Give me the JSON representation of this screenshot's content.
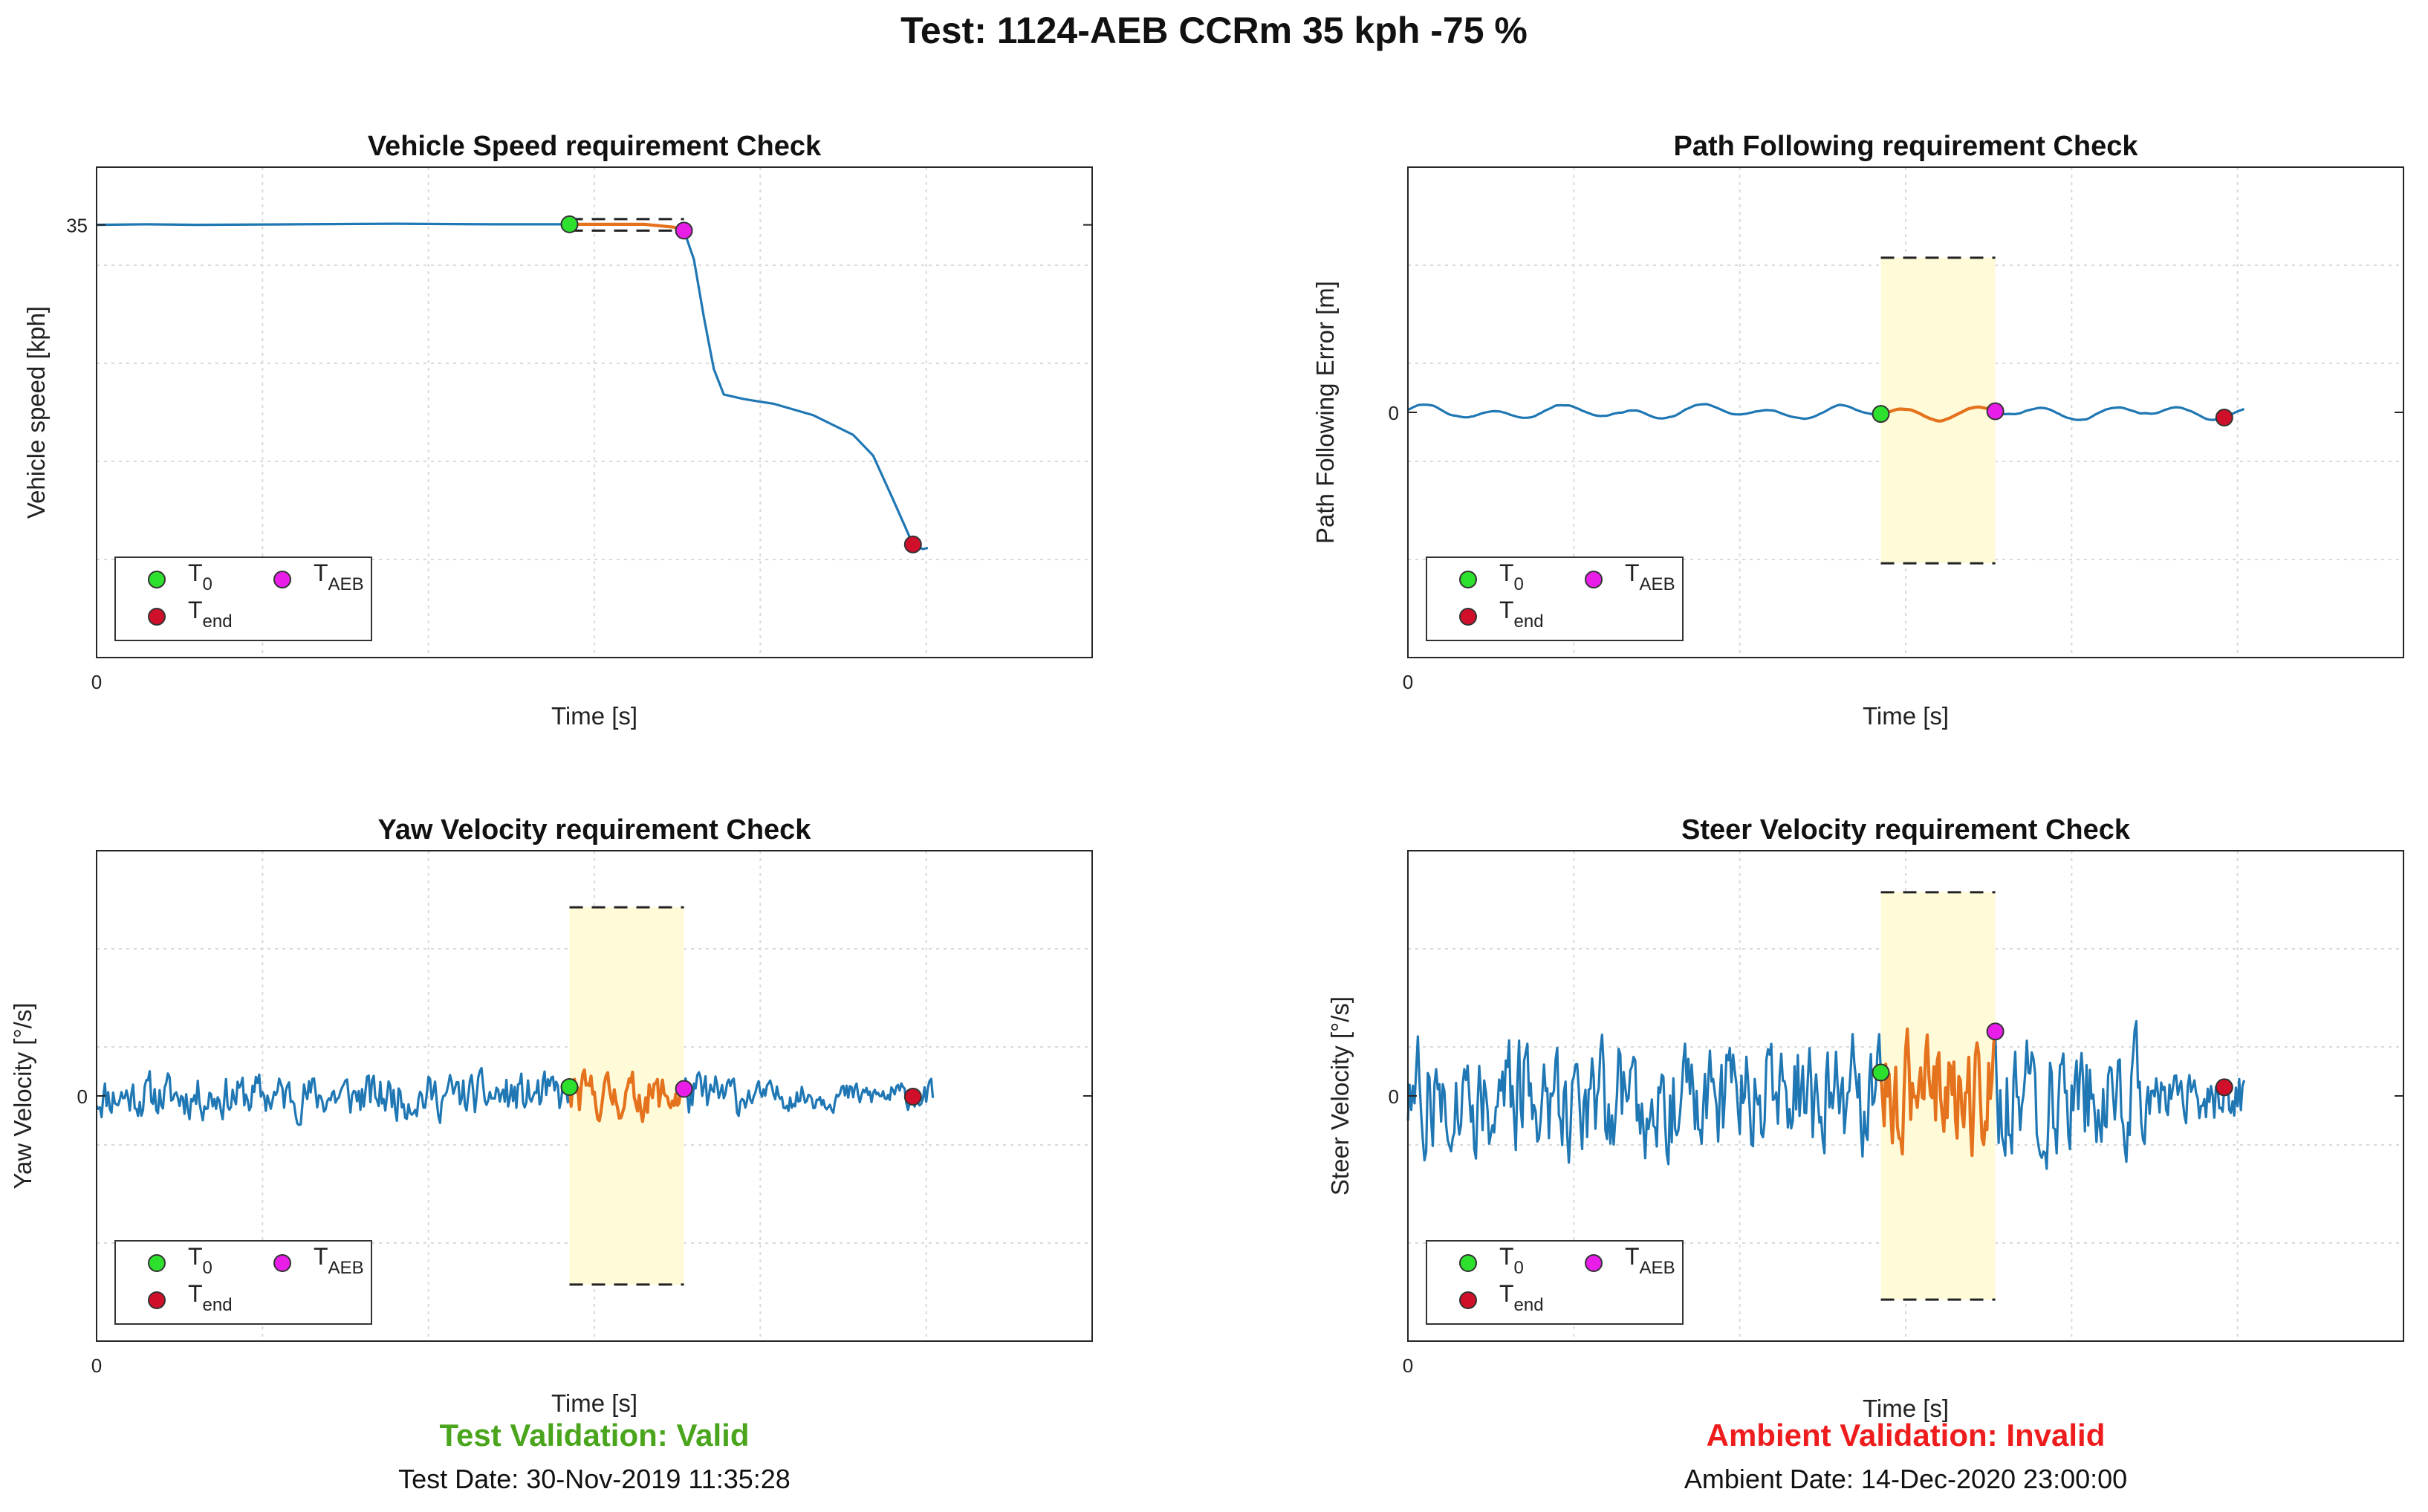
{
  "figure": {
    "title": "Test: 1124-AEB CCRm 35 kph -75 %",
    "test_validation": {
      "text": "Test Validation: Valid",
      "color": "#4aa51c"
    },
    "test_date": "Test Date: 30-Nov-2019 11:35:28",
    "ambient_validation": {
      "text": "Ambient Validation: Invalid",
      "color": "#ee1c1c"
    },
    "ambient_date": "Ambient Date: 14-Dec-2020 23:00:00"
  },
  "colors": {
    "signal": "#1f77b4",
    "check_window": "#e5721d",
    "band_fill": "#fffbd9",
    "t0_marker": "#2ee02e",
    "taeb_marker": "#e81ee8",
    "tend_marker": "#d0102a",
    "grid": "#d9d9d9"
  },
  "legend": {
    "t0": "T",
    "t0_sub": "0",
    "taeb": "T",
    "taeb_sub": "AEB",
    "tend": "T",
    "tend_sub": "end"
  },
  "chart_data": [
    {
      "id": "speed",
      "type": "line",
      "title": "Vehicle Speed requirement Check",
      "xlabel": "Time [s]",
      "ylabel": "Vehicle speed [kph]",
      "xticks": [
        "0"
      ],
      "yticks": [
        "35"
      ],
      "xlim": [
        0,
        10
      ],
      "ylim": [
        -2.5,
        40
      ],
      "band": false,
      "limits": [
        35.5,
        34.5
      ],
      "t0": 4.75,
      "taeb": 5.9,
      "tend": 8.2,
      "tmax": 8.4,
      "signal": [
        [
          0,
          35
        ],
        [
          0.5,
          35.05
        ],
        [
          1,
          35.0
        ],
        [
          2,
          35.05
        ],
        [
          3,
          35.1
        ],
        [
          4,
          35.05
        ],
        [
          4.75,
          35.05
        ],
        [
          5.5,
          35.05
        ],
        [
          5.8,
          34.8
        ],
        [
          5.9,
          34.5
        ],
        [
          6.0,
          32
        ],
        [
          6.1,
          27
        ],
        [
          6.2,
          22.5
        ],
        [
          6.3,
          20.3
        ],
        [
          6.5,
          19.9
        ],
        [
          6.8,
          19.5
        ],
        [
          7.2,
          18.5
        ],
        [
          7.6,
          16.8
        ],
        [
          7.8,
          15
        ],
        [
          8.0,
          11.2
        ],
        [
          8.2,
          7.3
        ],
        [
          8.3,
          6.9
        ],
        [
          8.35,
          7.0
        ]
      ]
    },
    {
      "id": "path",
      "type": "line",
      "title": "Path Following requirement Check",
      "xlabel": "Time [s]",
      "ylabel": "Path Following Error [m]",
      "xticks": [
        "0"
      ],
      "yticks": [
        "0"
      ],
      "xlim": [
        0,
        10
      ],
      "ylim": [
        -1.3,
        1.3
      ],
      "band": true,
      "limits": [
        0.82,
        -0.8
      ],
      "t0": 4.75,
      "taeb": 5.9,
      "tend": 8.2,
      "tmax": 8.4,
      "noise_amp": 0.04,
      "seed": 3
    },
    {
      "id": "yaw",
      "type": "line",
      "title": "Yaw Velocity requirement Check",
      "xlabel": "Time [s]",
      "ylabel": "Yaw Velocity [°/s]",
      "xticks": [
        "0"
      ],
      "yticks": [
        "0"
      ],
      "xlim": [
        0,
        10
      ],
      "ylim": [
        -1.3,
        1.3
      ],
      "band": true,
      "limits": [
        1.0,
        -1.0
      ],
      "t0": 4.75,
      "taeb": 5.9,
      "tend": 8.2,
      "tmax": 8.4,
      "noise_amp": 0.1,
      "seed": 11
    },
    {
      "id": "steer",
      "type": "line",
      "title": "Steer Velocity requirement Check",
      "xlabel": "Time [s]",
      "ylabel": "Steer Velocity [°/s]",
      "xticks": [
        "0"
      ],
      "yticks": [
        "0"
      ],
      "xlim": [
        0,
        10
      ],
      "ylim": [
        -1.3,
        1.3
      ],
      "band": true,
      "limits": [
        1.08,
        -1.08
      ],
      "t0": 4.75,
      "taeb": 5.9,
      "tend": 8.2,
      "tmax": 8.4,
      "noise_amp": 0.26,
      "seed": 27
    }
  ]
}
